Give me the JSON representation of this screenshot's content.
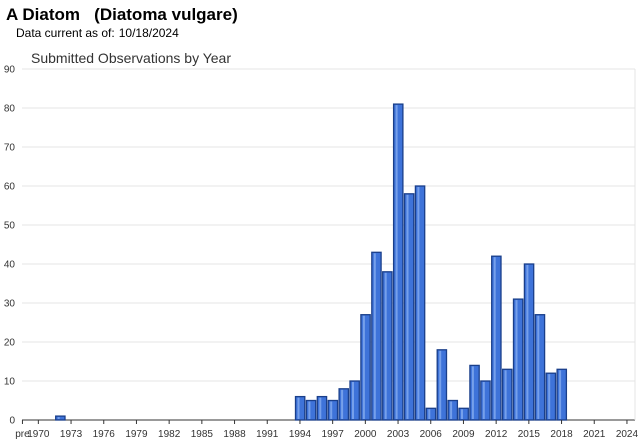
{
  "header": {
    "title": "A Diatom   (Diatoma vulgare)",
    "subtitle_label": "Data current as of:",
    "subtitle_date": "10/18/2024"
  },
  "colors": {
    "bar_fill": "#3e73d9",
    "bar_stroke": "#1a3f8a",
    "grid": "#e4e4e4",
    "axis": "#333333"
  },
  "chart_data": {
    "type": "bar",
    "title": "Submitted Observations by Year",
    "xlabel": "",
    "ylabel": "",
    "ylim": [
      0,
      90
    ],
    "yticks": [
      0,
      10,
      20,
      30,
      40,
      50,
      60,
      70,
      80,
      90
    ],
    "grid": true,
    "categories": [
      "pre 1970",
      "1970",
      "1971",
      "1972",
      "1973",
      "1974",
      "1975",
      "1976",
      "1977",
      "1978",
      "1979",
      "1980",
      "1981",
      "1982",
      "1983",
      "1984",
      "1985",
      "1986",
      "1987",
      "1988",
      "1989",
      "1990",
      "1991",
      "1992",
      "1993",
      "1994",
      "1995",
      "1996",
      "1997",
      "1998",
      "1999",
      "2000",
      "2001",
      "2002",
      "2003",
      "2004",
      "2005",
      "2006",
      "2007",
      "2008",
      "2009",
      "2010",
      "2011",
      "2012",
      "2013",
      "2014",
      "2015",
      "2016",
      "2017",
      "2018",
      "2019",
      "2020",
      "2021",
      "2022",
      "2023",
      "2024"
    ],
    "tick_labels": [
      "pre",
      "1970",
      "1973",
      "1976",
      "1979",
      "1982",
      "1985",
      "1988",
      "1991",
      "1994",
      "1997",
      "2000",
      "2003",
      "2006",
      "2009",
      "2012",
      "2015",
      "2018",
      "2021",
      "2024"
    ],
    "values": [
      0,
      0,
      0,
      1,
      0,
      0,
      0,
      0,
      0,
      0,
      0,
      0,
      0,
      0,
      0,
      0,
      0,
      0,
      0,
      0,
      0,
      0,
      0,
      0,
      0,
      6,
      5,
      6,
      5,
      8,
      10,
      27,
      43,
      38,
      81,
      58,
      60,
      3,
      18,
      5,
      3,
      14,
      10,
      42,
      13,
      31,
      40,
      27,
      12,
      13,
      0,
      0,
      0,
      0,
      0,
      0
    ]
  }
}
